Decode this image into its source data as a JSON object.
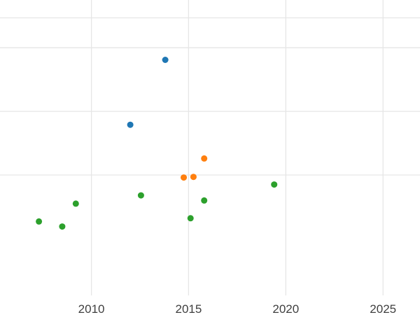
{
  "chart_data": {
    "type": "scatter",
    "title": "",
    "xlabel": "",
    "ylabel": "",
    "grid": true,
    "legend": "none",
    "xlim": [
      2005.3,
      2026.9
    ],
    "ylim": [
      -1.2,
      3.75
    ],
    "xticks": [
      {
        "value": 2010,
        "label": "2010"
      },
      {
        "value": 2015,
        "label": "2015"
      },
      {
        "value": 2020,
        "label": "2020"
      },
      {
        "value": 2025,
        "label": "2025"
      }
    ],
    "ygridlines": [
      1,
      2,
      3,
      3.47
    ],
    "colors": {
      "background": "#ffffff",
      "grid": "#e6e6e6",
      "tick_label": "#3f3f3f",
      "series_blue": "#1f77b4",
      "series_orange": "#ff7f0e",
      "series_green": "#2ca02c"
    },
    "marker_radius": 4.5,
    "series": [
      {
        "name": "blue",
        "color": "#1f77b4",
        "points": [
          [
            2013.8,
            2.81
          ],
          [
            2012.0,
            1.79
          ]
        ]
      },
      {
        "name": "orange",
        "color": "#ff7f0e",
        "points": [
          [
            2015.8,
            1.26
          ],
          [
            2014.75,
            0.96
          ],
          [
            2015.25,
            0.97
          ]
        ]
      },
      {
        "name": "green",
        "color": "#2ca02c",
        "points": [
          [
            2007.3,
            0.27
          ],
          [
            2008.5,
            0.19
          ],
          [
            2009.2,
            0.55
          ],
          [
            2012.55,
            0.68
          ],
          [
            2015.1,
            0.32
          ],
          [
            2015.8,
            0.6
          ],
          [
            2019.4,
            0.85
          ]
        ]
      }
    ]
  }
}
